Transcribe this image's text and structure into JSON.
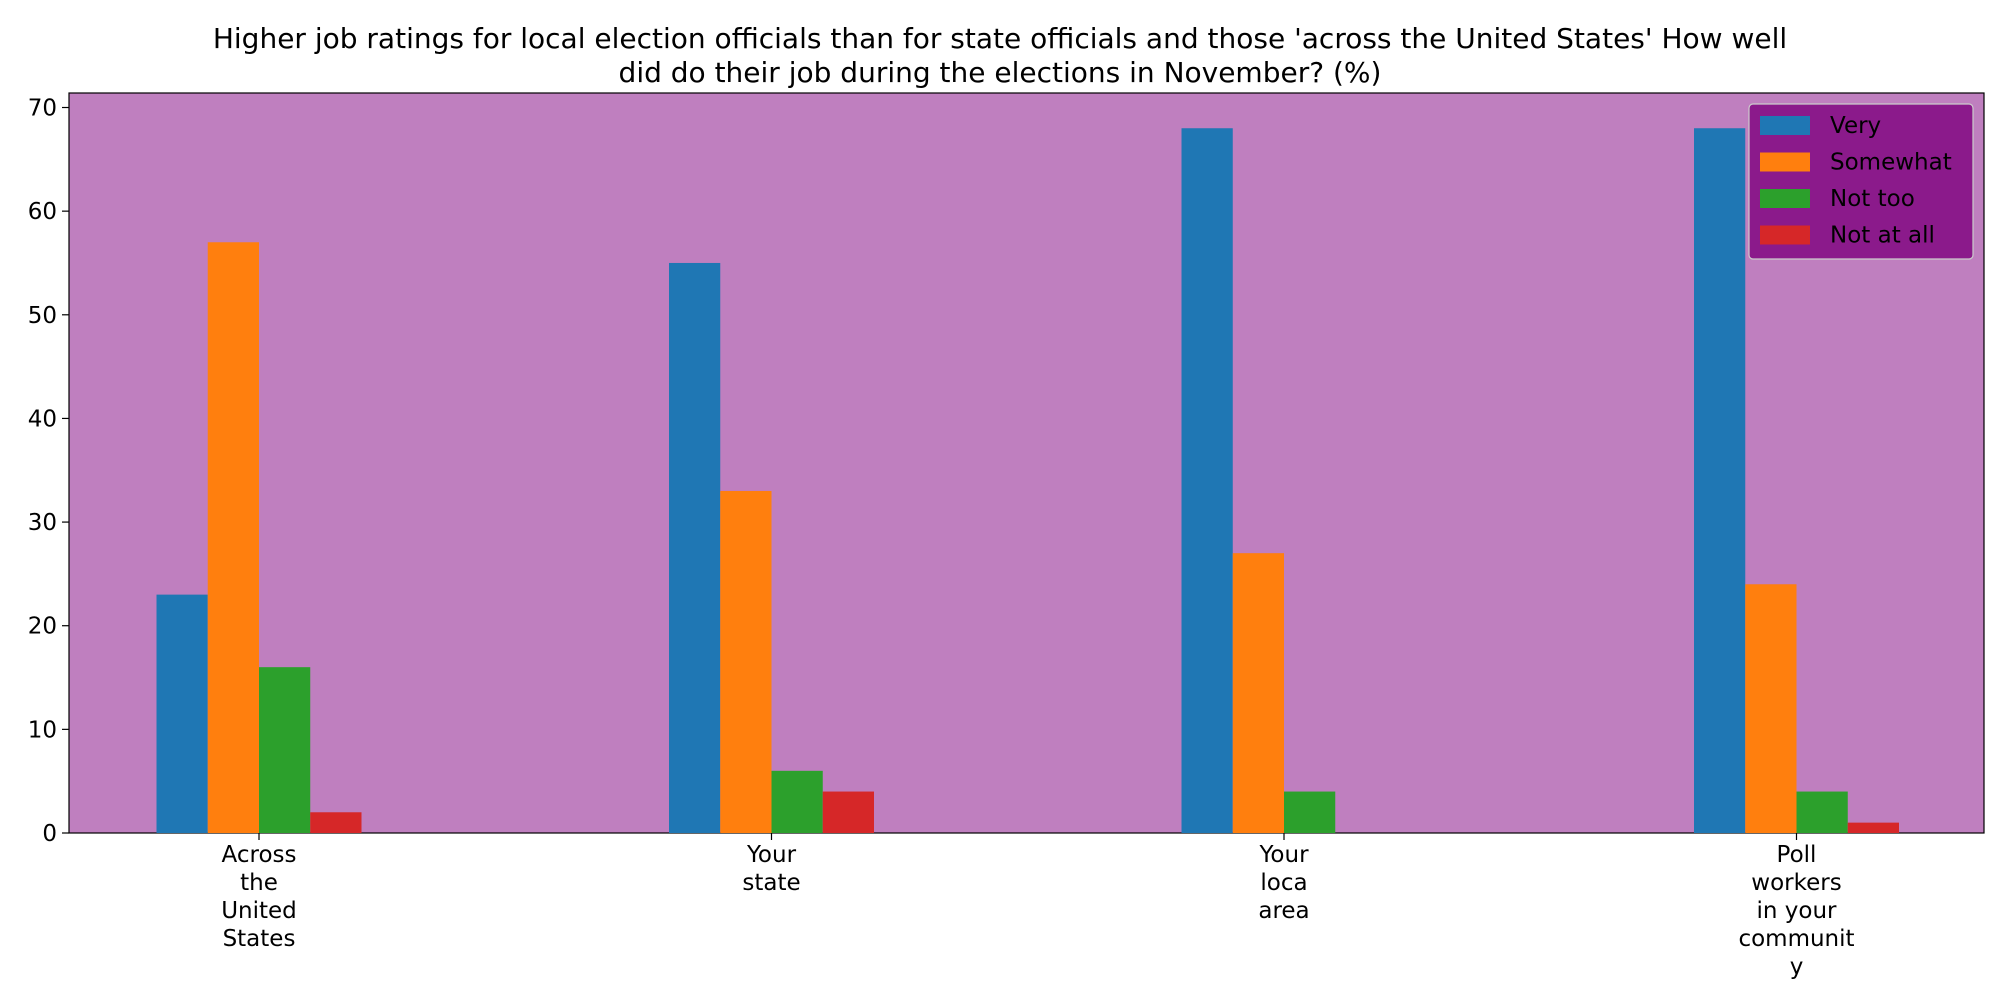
{
  "chart_data": {
    "type": "bar",
    "title_lines": [
      "Higher job ratings for local election officials than for state officials and those 'across the United States' How well",
      "did do their job during the elections in November? (%)"
    ],
    "categories": [
      [
        "Across",
        "the",
        "United",
        "States"
      ],
      [
        "Your",
        "state"
      ],
      [
        "Your",
        "loca",
        "area"
      ],
      [
        "Poll",
        "workers",
        "in your",
        "communit",
        "y"
      ]
    ],
    "series": [
      {
        "name": "Very",
        "color": "#1f77b4",
        "values": [
          23,
          55,
          68,
          68
        ]
      },
      {
        "name": "Somewhat",
        "color": "#ff7f0e",
        "values": [
          57,
          33,
          27,
          24
        ]
      },
      {
        "name": "Not too",
        "color": "#2ca02c",
        "values": [
          16,
          6,
          4,
          4
        ]
      },
      {
        "name": "Not at all",
        "color": "#d62728",
        "values": [
          2,
          4,
          0,
          1
        ]
      }
    ],
    "yticks": [
      0,
      10,
      20,
      30,
      40,
      50,
      60,
      70
    ],
    "ylim": [
      0,
      71.4
    ],
    "plot_background": "#bf7fbf",
    "legend": {
      "position": "top-right",
      "background": "#8b1a8b"
    }
  }
}
